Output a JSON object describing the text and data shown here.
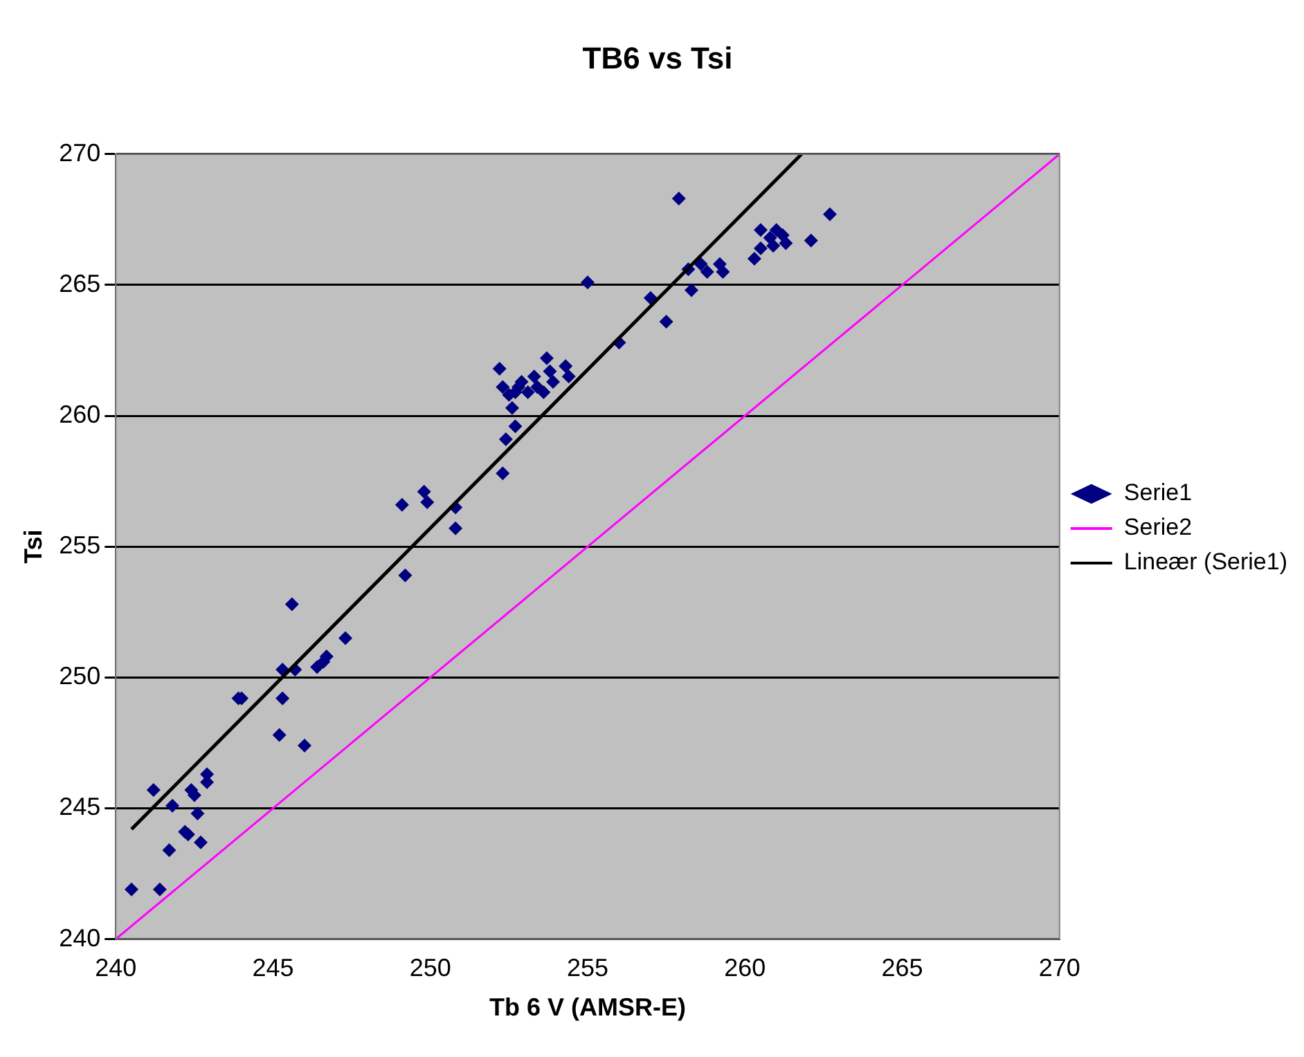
{
  "chart_data": {
    "type": "scatter",
    "title": "TB6 vs Tsi",
    "xlabel": "Tb 6 V (AMSR-E)",
    "ylabel": "Tsi",
    "xlim": [
      240,
      270
    ],
    "xticks": [
      240,
      245,
      250,
      255,
      260,
      265,
      270
    ],
    "ylim": [
      240,
      270
    ],
    "yticks": [
      240,
      245,
      250,
      255,
      260,
      265,
      270
    ],
    "grid": "y",
    "legend": "right",
    "marker": "diamond",
    "series": [
      {
        "name": "Serie1",
        "color": "#000080",
        "x": [
          240.5,
          241.4,
          241.2,
          241.7,
          241.8,
          242.2,
          242.3,
          242.4,
          242.5,
          242.6,
          242.7,
          242.9,
          242.9,
          243.9,
          244.0,
          245.2,
          245.3,
          245.3,
          245.6,
          245.7,
          246.0,
          246.4,
          246.6,
          246.7,
          247.3,
          249.1,
          249.2,
          249.8,
          249.9,
          250.8,
          250.8,
          252.3,
          252.4,
          252.7,
          252.2,
          252.3,
          252.5,
          252.6,
          252.7,
          252.8,
          252.9,
          253.1,
          253.3,
          253.4,
          253.6,
          253.7,
          253.8,
          253.9,
          254.3,
          254.4,
          255.0,
          256.0,
          257.0,
          257.5,
          257.9,
          258.2,
          258.3,
          258.6,
          258.8,
          259.2,
          259.3,
          260.3,
          260.5,
          260.5,
          260.8,
          260.9,
          261.0,
          261.2,
          261.3,
          262.1,
          262.7
        ],
        "values": [
          241.9,
          241.9,
          245.7,
          243.4,
          245.1,
          244.1,
          244.0,
          245.7,
          245.5,
          244.8,
          243.7,
          246.3,
          246.0,
          249.2,
          249.2,
          247.8,
          249.2,
          250.3,
          252.8,
          250.3,
          247.4,
          250.4,
          250.6,
          250.8,
          251.5,
          256.6,
          253.9,
          257.1,
          256.7,
          256.5,
          255.7,
          257.8,
          259.1,
          259.6,
          261.8,
          261.1,
          260.8,
          260.3,
          260.9,
          261.1,
          261.3,
          260.9,
          261.5,
          261.1,
          260.9,
          262.2,
          261.7,
          261.3,
          261.9,
          261.5,
          265.1,
          262.8,
          264.5,
          263.6,
          268.3,
          265.6,
          264.8,
          265.8,
          265.5,
          265.8,
          265.5,
          266.0,
          267.1,
          266.4,
          266.8,
          266.5,
          267.1,
          266.9,
          266.6,
          266.7,
          267.7
        ]
      },
      {
        "name": "Serie2",
        "type": "line",
        "color": "#ff00ff",
        "marker": "none",
        "x": [
          240,
          270
        ],
        "values": [
          240,
          270
        ]
      },
      {
        "name": "Lineær (Serie1)",
        "type": "line",
        "color": "#000000",
        "marker": "none",
        "x": [
          240.5,
          261.8
        ],
        "values": [
          244.2,
          270.0
        ]
      }
    ]
  }
}
